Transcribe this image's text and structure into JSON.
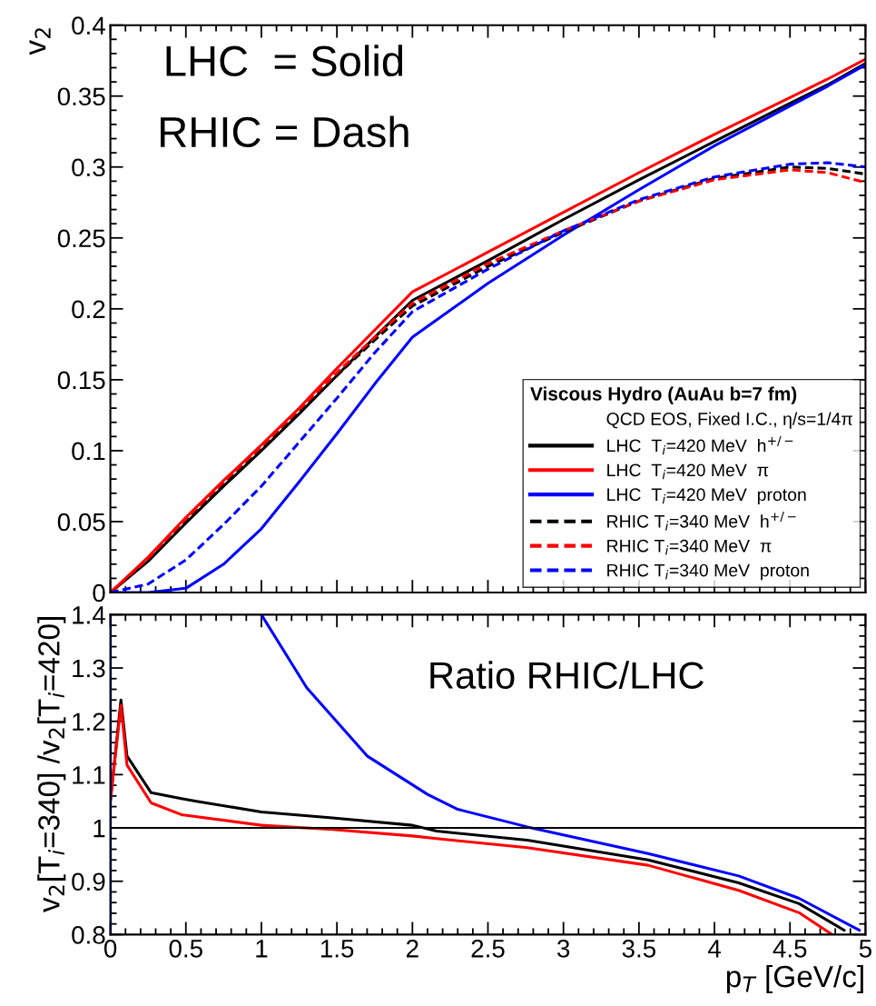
{
  "chart_data": [
    {
      "type": "line",
      "ylabel": "v$_{2}$",
      "legend_title": "Viscous Hydro (AuAu b=7 fm)",
      "annotations": [
        "LHC  = Solid",
        "RHIC = Dash",
        "QCD EOS, Fixed I.C., η/s=1/4π"
      ],
      "x": [
        0,
        0.25,
        0.5,
        0.75,
        1,
        1.25,
        1.5,
        1.75,
        2,
        2.5,
        3,
        3.5,
        4,
        4.5,
        4.75,
        5
      ],
      "series": [
        {
          "name": "LHC  T$_{i}$=420 MeV  h$^{+/−}$",
          "color": "#000000",
          "line_style": "solid",
          "values": [
            0,
            0.022,
            0.049,
            0.075,
            0.1,
            0.126,
            0.153,
            0.18,
            0.206,
            0.234,
            0.263,
            0.291,
            0.318,
            0.345,
            0.358,
            0.373
          ]
        },
        {
          "name": "LHC  T$_{i}$=420 MeV  π",
          "color": "#ff0000",
          "line_style": "solid",
          "values": [
            0,
            0.025,
            0.053,
            0.079,
            0.104,
            0.13,
            0.158,
            0.185,
            0.212,
            0.24,
            0.268,
            0.296,
            0.323,
            0.349,
            0.362,
            0.376
          ]
        },
        {
          "name": "LHC  T$_{i}$=420 MeV  proton",
          "color": "#0000ff",
          "line_style": "solid",
          "values": [
            0,
            0,
            0.003,
            0.02,
            0.045,
            0.078,
            0.112,
            0.147,
            0.18,
            0.218,
            0.252,
            0.284,
            0.315,
            0.343,
            0.357,
            0.372
          ]
        },
        {
          "name": "RHIC T$_{i}$=340 MeV  h$^{+/−}$",
          "color": "#000000",
          "line_style": "dashed",
          "values": [
            0,
            0.023,
            0.05,
            0.076,
            0.101,
            0.127,
            0.153,
            0.178,
            0.202,
            0.23,
            0.254,
            0.276,
            0.292,
            0.3,
            0.299,
            0.295
          ]
        },
        {
          "name": "RHIC T$_{i}$=340 MeV  π",
          "color": "#ff0000",
          "line_style": "dashed",
          "values": [
            0,
            0.024,
            0.052,
            0.078,
            0.103,
            0.129,
            0.155,
            0.18,
            0.204,
            0.232,
            0.255,
            0.276,
            0.291,
            0.298,
            0.296,
            0.289
          ]
        },
        {
          "name": "RHIC T$_{i}$=340 MeV  proton",
          "color": "#0000ff",
          "line_style": "dashed",
          "values": [
            0,
            0.006,
            0.023,
            0.048,
            0.075,
            0.106,
            0.137,
            0.169,
            0.198,
            0.228,
            0.255,
            0.277,
            0.293,
            0.302,
            0.303,
            0.3
          ]
        }
      ],
      "xlim": [
        0,
        5
      ],
      "xticks": [
        0,
        0.5,
        1,
        1.5,
        2,
        2.5,
        3,
        3.5,
        4,
        4.5,
        5
      ],
      "ylim": [
        0,
        0.4
      ],
      "yticks": [
        0,
        0.05,
        0.1,
        0.15,
        0.2,
        0.25,
        0.3,
        0.35,
        0.4
      ],
      "tick_labels": "y",
      "legend": "bottom right",
      "grid": false
    },
    {
      "type": "line",
      "xlabel": "p$_{T}$ [GeV/c]",
      "ylabel": "v$_{2}$[T$_{i}$=340] /v$_{2}$[T$_{i}$=420]",
      "annotations": [
        "Ratio RHIC/LHC"
      ],
      "series": [
        {
          "color": "#000000",
          "x": [
            0,
            0.07,
            0.11,
            0.27,
            0.47,
            0.57,
            1,
            1.47,
            2,
            2.16,
            2.76,
            3.56,
            4.16,
            4.56,
            4.86
          ],
          "values": [
            1.05,
            1.24,
            1.135,
            1.066,
            1.055,
            1.05,
            1.03,
            1.019,
            1.005,
            0.994,
            0.977,
            0.94,
            0.897,
            0.858,
            0.808
          ]
        },
        {
          "color": "#ff0000",
          "x": [
            0,
            0.07,
            0.11,
            0.27,
            0.47,
            1,
            1.47,
            2,
            2.16,
            2.76,
            3.56,
            4.16,
            4.56,
            4.78
          ],
          "values": [
            1.052,
            1.23,
            1.118,
            1.047,
            1.025,
            1.005,
            0.997,
            0.985,
            0.98,
            0.963,
            0.93,
            0.883,
            0.841,
            0.8
          ]
        },
        {
          "color": "#0000ff",
          "x": [
            0,
            0,
            0.5,
            1,
            1.3,
            1.7,
            2.1,
            2.3,
            2.76,
            3.56,
            4.16,
            4.56,
            4.96
          ],
          "values": [
            0.8,
            1.4,
            null,
            1.4,
            1.263,
            1.135,
            1.063,
            1.035,
            1.002,
            0.952,
            0.91,
            0.868,
            0.808
          ]
        }
      ],
      "ref_lines": [
        {
          "axis": "y",
          "value": 1,
          "color": "#000000"
        }
      ],
      "xlim": [
        0,
        5
      ],
      "xticks": [
        0,
        0.5,
        1,
        1.5,
        2,
        2.5,
        3,
        3.5,
        4,
        4.5,
        5
      ],
      "ylim": [
        0.8,
        1.4
      ],
      "yticks": [
        0.8,
        0.9,
        1,
        1.1,
        1.2,
        1.3,
        1.4
      ],
      "grid": false
    }
  ]
}
